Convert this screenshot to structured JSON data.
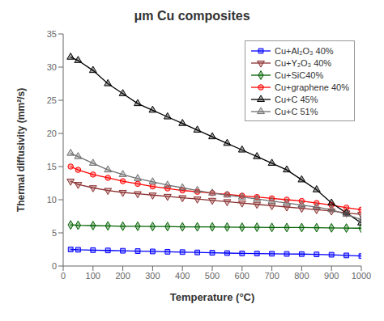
{
  "chart_data": {
    "type": "line",
    "title": "μm Cu composites",
    "xlabel": "Temperature (°C)",
    "ylabel": "Thermal diffusivity (mm²/s)",
    "x": [
      25,
      50,
      100,
      150,
      200,
      250,
      300,
      350,
      400,
      450,
      500,
      550,
      600,
      650,
      700,
      750,
      800,
      850,
      900,
      950,
      1000
    ],
    "xlim": [
      0,
      1000
    ],
    "xticks": [
      0,
      100,
      200,
      300,
      400,
      500,
      600,
      700,
      800,
      900,
      1000
    ],
    "ylim": [
      0,
      35
    ],
    "yticks": [
      0,
      5,
      10,
      15,
      20,
      25,
      30,
      35
    ],
    "grid": false,
    "legend": "upper right",
    "series": [
      {
        "name": "Cu+Al₂O₃ 40%",
        "color": "#0000ff",
        "marker": "square",
        "line_style": "solid",
        "values": [
          2.5,
          2.45,
          2.4,
          2.35,
          2.3,
          2.25,
          2.2,
          2.15,
          2.1,
          2.05,
          2.0,
          1.95,
          1.9,
          1.88,
          1.85,
          1.82,
          1.8,
          1.75,
          1.7,
          1.6,
          1.5
        ]
      },
      {
        "name": "Cu+Y₂O₃ 40%",
        "color": "#8B3030",
        "marker": "triangle-down",
        "line_style": "solid",
        "values": [
          12.8,
          12.3,
          11.8,
          11.4,
          11.1,
          10.9,
          10.7,
          10.5,
          10.3,
          10.1,
          9.9,
          9.7,
          9.5,
          9.3,
          9.1,
          8.9,
          8.7,
          8.5,
          8.3,
          8.0,
          7.8
        ]
      },
      {
        "name": "Cu+SiC40%",
        "color": "#006000",
        "marker": "diamond",
        "line_style": "solid",
        "values": [
          6.2,
          6.15,
          6.1,
          6.05,
          6.0,
          6.0,
          5.95,
          5.95,
          5.9,
          5.9,
          5.9,
          5.88,
          5.85,
          5.85,
          5.82,
          5.8,
          5.8,
          5.78,
          5.75,
          5.72,
          5.7
        ]
      },
      {
        "name": "Cu+graphene 40%",
        "color": "#ff0000",
        "marker": "circle",
        "line_style": "solid",
        "values": [
          15.0,
          14.5,
          13.8,
          13.3,
          12.8,
          12.4,
          12.0,
          11.7,
          11.4,
          11.2,
          11.0,
          10.8,
          10.6,
          10.4,
          10.2,
          10.0,
          9.8,
          9.5,
          9.2,
          8.8,
          8.5
        ]
      },
      {
        "name": "Cu+C 45%",
        "color": "#000000",
        "marker": "triangle",
        "line_style": "solid",
        "values": [
          31.5,
          31.0,
          29.5,
          27.5,
          26.0,
          24.5,
          23.5,
          22.5,
          21.5,
          20.5,
          19.5,
          18.5,
          17.5,
          16.5,
          15.5,
          14.5,
          13.0,
          11.5,
          9.5,
          8.0,
          6.5
        ]
      },
      {
        "name": "Cu+C 51%",
        "color": "#707070",
        "marker": "triangle",
        "line_style": "solid",
        "values": [
          17.0,
          16.5,
          15.5,
          14.5,
          13.8,
          13.2,
          12.7,
          12.2,
          11.8,
          11.4,
          11.0,
          10.7,
          10.4,
          10.1,
          9.8,
          9.5,
          9.2,
          8.9,
          8.5,
          7.8,
          7.0
        ]
      }
    ]
  }
}
